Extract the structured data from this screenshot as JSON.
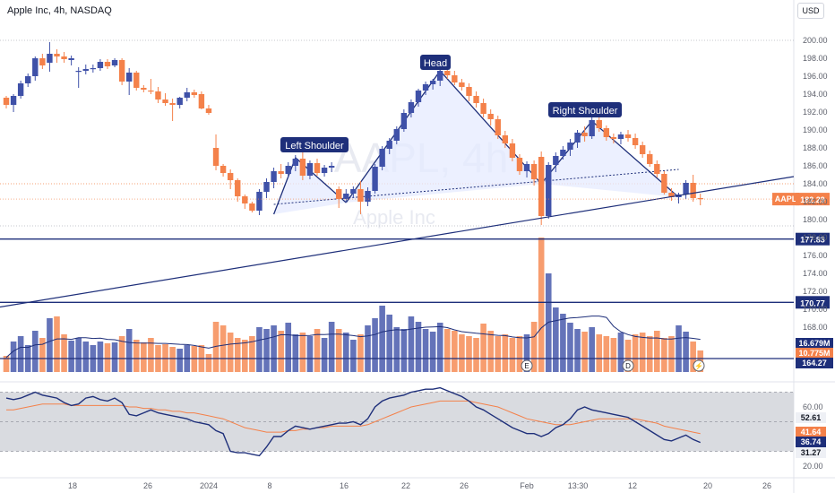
{
  "header": {
    "title": "Apple Inc, 4h, NASDAQ",
    "currency": "USD"
  },
  "colors": {
    "up": "#3f51a8",
    "down": "#f4814a",
    "line": "#1e2f7a",
    "fill": "#e6ebff",
    "rsi": "#1e2f7a",
    "rsi_ma": "#f4814a"
  },
  "watermark": {
    "symbol": "AAPL, 4h",
    "name": "Apple Inc"
  },
  "chart_data": {
    "type": "candlestick",
    "symbol": "AAPL",
    "price_axis": {
      "ticks": [
        200,
        198,
        196,
        194,
        192,
        190,
        188,
        186,
        184,
        182,
        180,
        178,
        176,
        174,
        172,
        170,
        168
      ],
      "range": [
        166.5,
        201
      ]
    },
    "x_ticks": [
      "18",
      "26",
      "2024",
      "8",
      "16",
      "22",
      "26",
      "Feb",
      "13:30",
      "12",
      "20",
      "26"
    ],
    "candles": [
      [
        193.6,
        193.8,
        192.4,
        192.8
      ],
      [
        192.8,
        194.0,
        192.0,
        193.8
      ],
      [
        193.8,
        195.5,
        193.5,
        195.2
      ],
      [
        195.2,
        196.3,
        194.8,
        196.0
      ],
      [
        196.0,
        198.2,
        195.5,
        198.0
      ],
      [
        198.0,
        198.5,
        196.8,
        197.2
      ],
      [
        197.5,
        199.8,
        196.5,
        198.5
      ],
      [
        198.5,
        199.0,
        197.5,
        198.2
      ],
      [
        198.2,
        198.7,
        197.5,
        197.9
      ],
      [
        197.8,
        198.3,
        197.2,
        198.0
      ],
      [
        196.5,
        197.0,
        194.7,
        196.6
      ],
      [
        196.6,
        197.3,
        196.2,
        196.8
      ],
      [
        196.8,
        197.3,
        196.4,
        196.9
      ],
      [
        196.9,
        197.9,
        196.6,
        197.6
      ],
      [
        197.6,
        197.9,
        196.8,
        197.1
      ],
      [
        197.2,
        198.0,
        197.0,
        197.8
      ],
      [
        197.8,
        198.0,
        195.0,
        195.4
      ],
      [
        195.4,
        196.9,
        193.9,
        196.4
      ],
      [
        196.4,
        196.6,
        194.4,
        194.7
      ],
      [
        194.7,
        195.0,
        194.2,
        194.5
      ],
      [
        194.4,
        195.7,
        194.0,
        194.3
      ],
      [
        194.3,
        194.8,
        193.0,
        193.4
      ],
      [
        193.4,
        194.1,
        192.7,
        193.0
      ],
      [
        193.0,
        193.5,
        191.0,
        192.8
      ],
      [
        192.8,
        193.7,
        192.4,
        193.6
      ],
      [
        193.6,
        194.7,
        193.2,
        194.2
      ],
      [
        194.2,
        194.5,
        193.6,
        193.9
      ],
      [
        194.0,
        194.3,
        192.3,
        192.4
      ],
      [
        192.4,
        192.8,
        191.7,
        191.9
      ],
      [
        188.0,
        189.5,
        185.5,
        186.0
      ],
      [
        186.0,
        186.2,
        184.8,
        185.2
      ],
      [
        185.2,
        185.6,
        183.4,
        184.4
      ],
      [
        184.4,
        184.6,
        182.0,
        182.6
      ],
      [
        182.6,
        182.8,
        181.2,
        181.8
      ],
      [
        181.8,
        182.0,
        180.8,
        181.0
      ],
      [
        181.0,
        183.4,
        180.5,
        183.1
      ],
      [
        183.1,
        184.6,
        182.4,
        184.2
      ],
      [
        184.2,
        185.8,
        183.5,
        185.4
      ],
      [
        185.4,
        186.2,
        184.6,
        185.1
      ],
      [
        185.1,
        186.4,
        184.7,
        186.0
      ],
      [
        186.0,
        187.2,
        185.4,
        186.8
      ],
      [
        186.8,
        187.5,
        184.4,
        184.9
      ],
      [
        184.9,
        186.6,
        184.5,
        186.3
      ],
      [
        186.3,
        186.8,
        184.9,
        185.2
      ],
      [
        185.2,
        186.1,
        184.8,
        185.8
      ],
      [
        185.8,
        186.4,
        185.3,
        186.0
      ],
      [
        183.4,
        183.7,
        181.3,
        182.3
      ],
      [
        182.3,
        183.4,
        181.9,
        182.9
      ],
      [
        182.9,
        183.7,
        182.4,
        183.4
      ],
      [
        183.4,
        184.3,
        180.6,
        182.0
      ],
      [
        182.0,
        183.6,
        181.5,
        183.2
      ],
      [
        183.2,
        186.2,
        182.9,
        185.9
      ],
      [
        185.9,
        188.2,
        185.5,
        187.9
      ],
      [
        187.9,
        189.1,
        187.3,
        188.8
      ],
      [
        188.8,
        190.4,
        188.4,
        190.1
      ],
      [
        190.1,
        192.3,
        189.8,
        191.9
      ],
      [
        191.9,
        193.4,
        191.4,
        193.1
      ],
      [
        193.1,
        194.6,
        192.6,
        194.4
      ],
      [
        194.4,
        195.4,
        193.9,
        195.1
      ],
      [
        195.1,
        195.7,
        194.5,
        195.5
      ],
      [
        195.5,
        196.9,
        194.9,
        196.6
      ],
      [
        196.6,
        196.9,
        195.7,
        196.1
      ],
      [
        196.1,
        196.6,
        195.0,
        195.3
      ],
      [
        195.3,
        195.7,
        194.4,
        194.8
      ],
      [
        194.8,
        195.2,
        193.2,
        193.8
      ],
      [
        193.8,
        194.3,
        192.5,
        193.0
      ],
      [
        193.0,
        193.5,
        191.4,
        191.8
      ],
      [
        191.8,
        192.3,
        190.5,
        191.2
      ],
      [
        191.2,
        191.6,
        189.0,
        189.4
      ],
      [
        189.4,
        189.9,
        188.0,
        188.5
      ],
      [
        188.5,
        189.0,
        186.5,
        186.9
      ],
      [
        186.9,
        187.3,
        185.0,
        185.4
      ],
      [
        185.4,
        186.5,
        184.7,
        186.2
      ],
      [
        186.2,
        186.6,
        183.8,
        184.5
      ],
      [
        187.0,
        187.6,
        179.4,
        180.4
      ],
      [
        180.4,
        186.4,
        180.1,
        186.1
      ],
      [
        186.1,
        187.5,
        185.3,
        187.1
      ],
      [
        187.1,
        188.2,
        186.7,
        187.8
      ],
      [
        187.8,
        189.0,
        187.1,
        188.6
      ],
      [
        188.6,
        190.0,
        188.0,
        189.7
      ],
      [
        189.7,
        190.4,
        188.7,
        189.3
      ],
      [
        189.3,
        191.4,
        189.0,
        191.1
      ],
      [
        191.1,
        191.6,
        189.8,
        190.2
      ],
      [
        190.2,
        190.5,
        188.8,
        189.2
      ],
      [
        189.2,
        189.6,
        188.5,
        189.0
      ],
      [
        189.0,
        189.8,
        188.4,
        189.5
      ],
      [
        189.5,
        190.0,
        188.7,
        189.1
      ],
      [
        189.1,
        189.6,
        187.9,
        188.3
      ],
      [
        188.3,
        188.7,
        186.9,
        187.3
      ],
      [
        187.3,
        187.7,
        185.9,
        186.2
      ],
      [
        186.2,
        186.6,
        184.7,
        185.1
      ],
      [
        185.1,
        185.4,
        182.8,
        183.0
      ],
      [
        183.0,
        183.5,
        182.1,
        182.5
      ],
      [
        182.5,
        183.0,
        181.8,
        182.8
      ],
      [
        182.8,
        184.4,
        182.3,
        184.1
      ],
      [
        184.1,
        185.0,
        182.0,
        182.4
      ],
      [
        182.4,
        182.9,
        181.6,
        182.3
      ]
    ],
    "patterns": [
      {
        "label": "Left Shoulder",
        "points": [
          [
            37,
            180.6
          ],
          [
            40,
            186.9
          ],
          [
            47,
            181.9
          ]
        ]
      },
      {
        "label": "Head",
        "points": [
          [
            47,
            181.9
          ],
          [
            60,
            196.6
          ],
          [
            74,
            184.0
          ]
        ]
      },
      {
        "label": "Right Shoulder",
        "points": [
          [
            74,
            184.0
          ],
          [
            81,
            191.0
          ],
          [
            93,
            182.5
          ]
        ]
      }
    ],
    "neckline": {
      "from": [
        37,
        181.7
      ],
      "to": [
        93,
        185.6
      ]
    },
    "trendline": {
      "from": [
        0,
        170.2
      ],
      "to": [
        111,
        184.8
      ]
    },
    "horizontal_levels": [
      {
        "value": 177.83,
        "label": "177.83"
      },
      {
        "value": 170.77,
        "label": "170.77"
      }
    ],
    "guide_lines": [
      200,
      184
    ],
    "last_price": {
      "symbol": "AAPL",
      "value": 182.29,
      "label": "182.29"
    },
    "volume": {
      "bars": [
        18,
        34,
        40,
        30,
        46,
        38,
        60,
        62,
        42,
        35,
        38,
        34,
        30,
        34,
        32,
        33,
        40,
        48,
        36,
        33,
        38,
        30,
        31,
        28,
        26,
        30,
        29,
        30,
        20,
        56,
        52,
        44,
        38,
        36,
        40,
        50,
        48,
        52,
        46,
        55,
        42,
        44,
        40,
        48,
        38,
        56,
        48,
        44,
        36,
        42,
        52,
        60,
        74,
        64,
        50,
        48,
        62,
        56,
        48,
        45,
        55,
        48,
        46,
        42,
        40,
        38,
        54,
        46,
        40,
        42,
        38,
        40,
        42,
        56,
        150,
        110,
        72,
        65,
        55,
        48,
        45,
        50,
        42,
        40,
        38,
        44,
        36,
        42,
        44,
        40,
        46,
        38,
        40,
        52,
        45,
        34,
        24
      ],
      "ma_values": [
        "16.679M",
        "10.775M"
      ],
      "ma_colors": [
        "#3f51a8",
        "#f4814a"
      ],
      "level_label": "164.27",
      "level_value": 164.27,
      "earnings_badges": [
        {
          "index": 72,
          "text": "E"
        },
        {
          "index": 86,
          "text": "D"
        }
      ],
      "lightning": "⚡"
    },
    "rsi": {
      "axis_ticks": [
        60.0,
        40.0,
        20.0
      ],
      "range": [
        17,
        80
      ],
      "band": [
        70,
        30
      ],
      "labels": {
        "ma": "52.61",
        "rsi_ma_value": "41.64",
        "rsi_value": "36.74",
        "lower": "31.27"
      },
      "values": [
        66,
        65,
        66,
        68,
        70,
        68,
        67,
        66,
        63,
        61,
        62,
        66,
        67,
        65,
        64,
        66,
        63,
        55,
        54,
        56,
        58,
        56,
        55,
        54,
        53,
        52,
        50,
        49,
        48,
        44,
        42,
        30,
        29,
        29,
        28,
        27,
        33,
        40,
        40,
        44,
        47,
        46,
        45,
        46,
        47,
        48,
        49,
        49,
        50,
        48,
        52,
        60,
        64,
        66,
        67,
        68,
        70,
        71,
        72,
        72,
        73,
        71,
        69,
        67,
        64,
        60,
        58,
        55,
        52,
        49,
        46,
        44,
        42,
        42,
        40,
        42,
        46,
        48,
        52,
        58,
        60,
        58,
        57,
        56,
        55,
        54,
        53,
        50,
        47,
        44,
        41,
        38,
        37,
        39,
        41,
        38,
        36
      ],
      "ma": [
        58,
        58,
        59,
        60,
        61,
        62,
        62,
        62,
        62,
        61,
        61,
        61,
        61,
        61,
        61,
        61,
        61,
        60,
        60,
        59,
        59,
        58,
        58,
        57,
        57,
        56,
        56,
        55,
        54,
        53,
        52,
        50,
        48,
        46,
        45,
        44,
        43,
        43,
        43,
        44,
        44,
        45,
        45,
        46,
        46,
        47,
        47,
        47,
        47,
        47,
        48,
        50,
        52,
        54,
        56,
        58,
        60,
        61,
        62,
        63,
        64,
        64,
        64,
        64,
        64,
        63,
        62,
        61,
        60,
        58,
        56,
        54,
        52,
        51,
        50,
        49,
        48,
        48,
        48,
        49,
        50,
        51,
        52,
        52,
        52,
        52,
        52,
        52,
        51,
        50,
        49,
        47,
        46,
        45,
        44,
        43,
        42
      ]
    }
  }
}
